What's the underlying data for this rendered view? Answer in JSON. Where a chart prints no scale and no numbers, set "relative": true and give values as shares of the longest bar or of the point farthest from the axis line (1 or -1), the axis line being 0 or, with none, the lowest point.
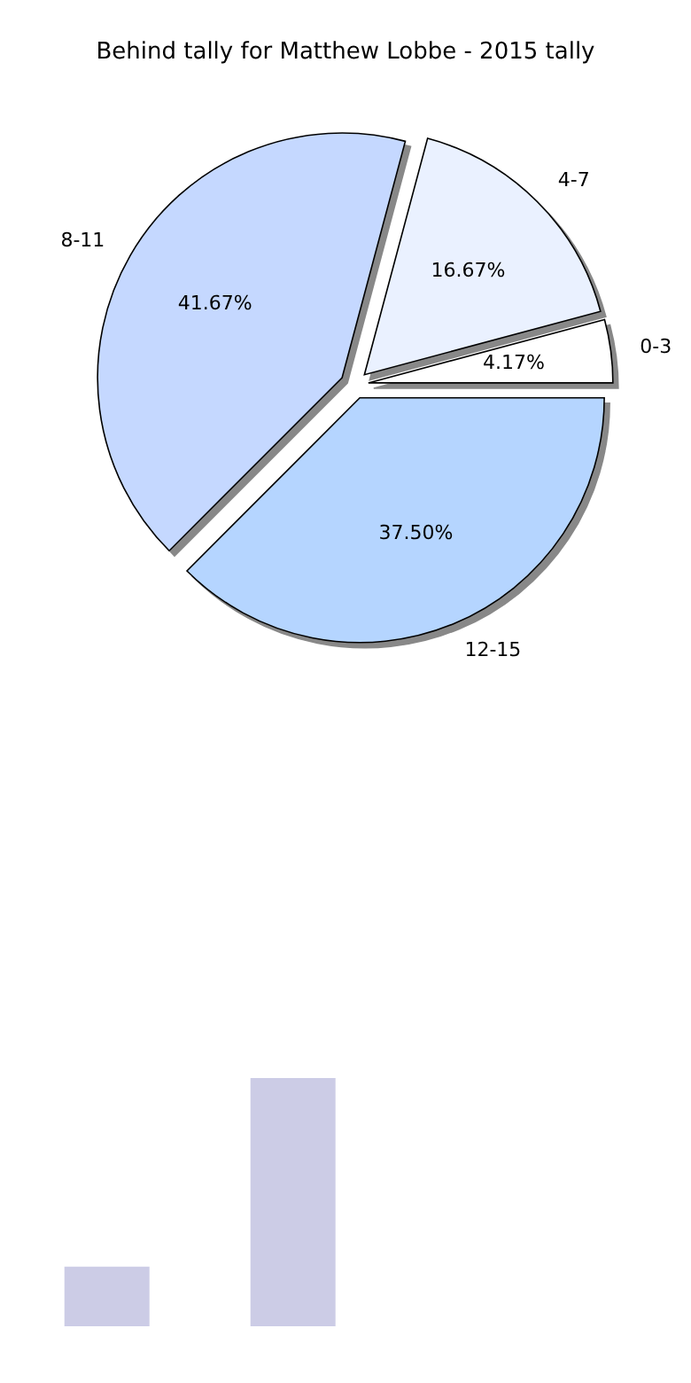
{
  "chart_data": [
    {
      "type": "pie",
      "title": "Behind tally for Matthew Lobbe - 2015 tally",
      "categories": [
        "0-3",
        "4-7",
        "8-11",
        "12-15"
      ],
      "values": [
        4.17,
        16.67,
        41.67,
        37.5
      ],
      "colors": [
        "#ffffff",
        "#eaf1ff",
        "#c5d8ff",
        "#b5d5ff"
      ],
      "value_labels": [
        "4.17%",
        "16.67%",
        "41.67%",
        "37.50%"
      ]
    },
    {
      "type": "bar",
      "relative": true,
      "categories": [
        null,
        null
      ],
      "values": [
        0.24,
        1
      ],
      "color": "#cccce6"
    }
  ]
}
